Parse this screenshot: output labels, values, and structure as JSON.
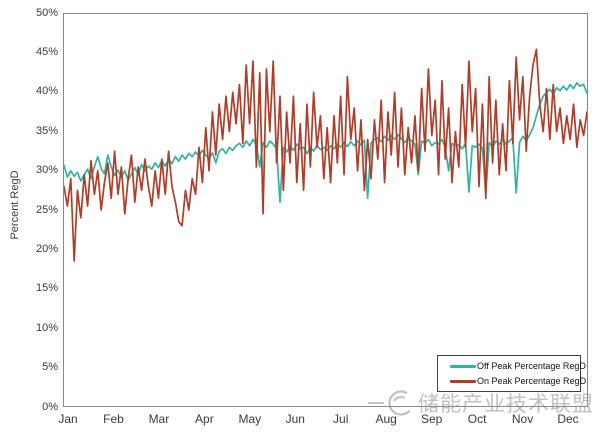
{
  "window": {
    "background": "#ffffff"
  },
  "watermark": {
    "text": "储能产业技术联盟",
    "color": "#8f8f8f",
    "logo": "swirl-circle"
  },
  "chart_data": {
    "type": "line",
    "title": "",
    "xlabel": "",
    "ylabel": "Percent RegD",
    "ylim": [
      0,
      50
    ],
    "grid": false,
    "legend_position": "lower-right",
    "x_tick_labels": [
      "Jan",
      "Feb",
      "Mar",
      "Apr",
      "May",
      "Jun",
      "Jul",
      "Aug",
      "Sep",
      "Oct",
      "Nov",
      "Dec"
    ],
    "y_tick_labels": [
      "0%",
      "5%",
      "10%",
      "15%",
      "20%",
      "25%",
      "30%",
      "35%",
      "40%",
      "45%",
      "50%"
    ],
    "unit": "%",
    "series": [
      {
        "name": "Off Peak Percentage RegD",
        "color": "#2fb3a3",
        "values": [
          30.7,
          29.2,
          30.0,
          29.3,
          29.8,
          28.7,
          29.5,
          30.2,
          29.0,
          30.5,
          31.8,
          30.3,
          29.6,
          32.0,
          30.5,
          29.4,
          30.1,
          29.2,
          30.0,
          28.8,
          29.6,
          30.4,
          29.5,
          30.8,
          30.0,
          30.6,
          30.2,
          31.0,
          30.4,
          31.3,
          30.6,
          31.5,
          30.9,
          31.8,
          31.2,
          32.0,
          31.5,
          32.2,
          31.8,
          32.4,
          31.9,
          32.6,
          32.0,
          31.5,
          32.3,
          31.0,
          32.5,
          32.8,
          32.2,
          33.0,
          32.6,
          33.2,
          33.5,
          33.0,
          33.8,
          33.2,
          34.0,
          33.4,
          30.5,
          33.6,
          33.0,
          33.8,
          33.4,
          32.8,
          26.0,
          33.0,
          32.4,
          33.2,
          32.6,
          33.4,
          32.8,
          33.0,
          32.2,
          33.0,
          32.5,
          33.2,
          32.7,
          33.0,
          32.6,
          33.2,
          32.8,
          33.4,
          33.0,
          33.6,
          33.1,
          33.7,
          33.2,
          33.8,
          33.3,
          33.9,
          26.5,
          33.5,
          34.0,
          34.2,
          33.7,
          34.4,
          33.9,
          34.5,
          34.0,
          34.6,
          34.1,
          33.6,
          34.2,
          33.8,
          33.4,
          29.5,
          33.8,
          33.5,
          34.0,
          33.2,
          33.6,
          33.4,
          34.0,
          33.0,
          30.0,
          33.5,
          33.2,
          33.3,
          32.8,
          33.5,
          27.3,
          33.2,
          33.0,
          33.4,
          32.9,
          27.0,
          33.6,
          33.0,
          33.8,
          33.4,
          34.0,
          33.4,
          33.8,
          34.2,
          27.2,
          33.6,
          34.4,
          33.8,
          34.6,
          35.5,
          37.0,
          38.5,
          39.5,
          40.0,
          40.4,
          39.8,
          40.6,
          40.2,
          40.8,
          40.3,
          41.0,
          40.5,
          41.2,
          40.8,
          41.0,
          39.9
        ]
      },
      {
        "name": "On Peak Percentage RegD",
        "color": "#b13c27",
        "values": [
          28.0,
          25.5,
          29.0,
          18.5,
          27.5,
          24.0,
          29.5,
          25.5,
          31.3,
          27.0,
          30.0,
          25.0,
          28.5,
          31.0,
          26.5,
          32.5,
          27.0,
          30.5,
          24.5,
          29.0,
          32.0,
          26.0,
          30.5,
          27.5,
          31.5,
          28.0,
          25.5,
          30.0,
          26.5,
          31.5,
          27.0,
          32.5,
          28.0,
          26.0,
          23.5,
          23.0,
          27.5,
          25.0,
          29.0,
          27.0,
          33.0,
          28.5,
          35.5,
          30.0,
          37.5,
          32.0,
          38.5,
          34.0,
          39.5,
          35.0,
          40.0,
          36.0,
          41.0,
          33.5,
          43.5,
          36.0,
          44.0,
          30.5,
          42.5,
          24.5,
          43.0,
          35.0,
          44.0,
          31.0,
          39.5,
          27.5,
          37.5,
          31.0,
          39.5,
          28.5,
          36.0,
          27.5,
          38.5,
          30.5,
          40.0,
          33.0,
          37.0,
          29.0,
          35.5,
          28.5,
          37.0,
          31.0,
          39.5,
          29.5,
          42.0,
          34.0,
          38.0,
          30.0,
          36.5,
          27.5,
          34.0,
          29.0,
          36.5,
          31.5,
          39.0,
          28.5,
          37.5,
          32.0,
          40.0,
          30.5,
          38.0,
          29.5,
          35.5,
          31.0,
          37.0,
          30.0,
          40.5,
          32.5,
          43.0,
          34.5,
          39.0,
          29.5,
          41.5,
          31.5,
          38.0,
          28.5,
          35.0,
          30.5,
          41.0,
          33.0,
          44.0,
          35.0,
          40.5,
          28.0,
          38.5,
          26.5,
          42.0,
          31.0,
          39.0,
          29.5,
          36.0,
          30.0,
          41.5,
          33.5,
          44.5,
          36.5,
          42.0,
          32.5,
          39.5,
          43.5,
          45.5,
          38.5,
          35.0,
          40.5,
          34.0,
          41.0,
          35.0,
          38.0,
          33.5,
          37.0,
          34.0,
          38.5,
          33.0,
          36.5,
          34.5,
          37.5
        ]
      }
    ]
  }
}
